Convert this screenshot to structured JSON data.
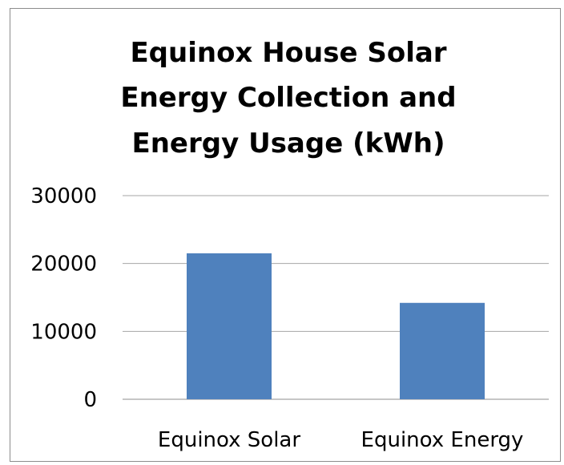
{
  "chart_data": {
    "type": "bar",
    "title_lines": [
      "Equinox House Solar",
      "Energy Collection and",
      "Energy Usage (kWh)"
    ],
    "title": "Equinox House Solar Energy Collection and Energy Usage (kWh)",
    "categories": [
      "Equinox Solar",
      "Equinox Energy"
    ],
    "values": [
      21500,
      14200
    ],
    "yticks": [
      "0",
      "10000",
      "20000",
      "30000"
    ],
    "ylim": [
      0,
      30000
    ],
    "grid": true,
    "bar_color": "#4f81bd",
    "xlabel": "",
    "ylabel": ""
  }
}
